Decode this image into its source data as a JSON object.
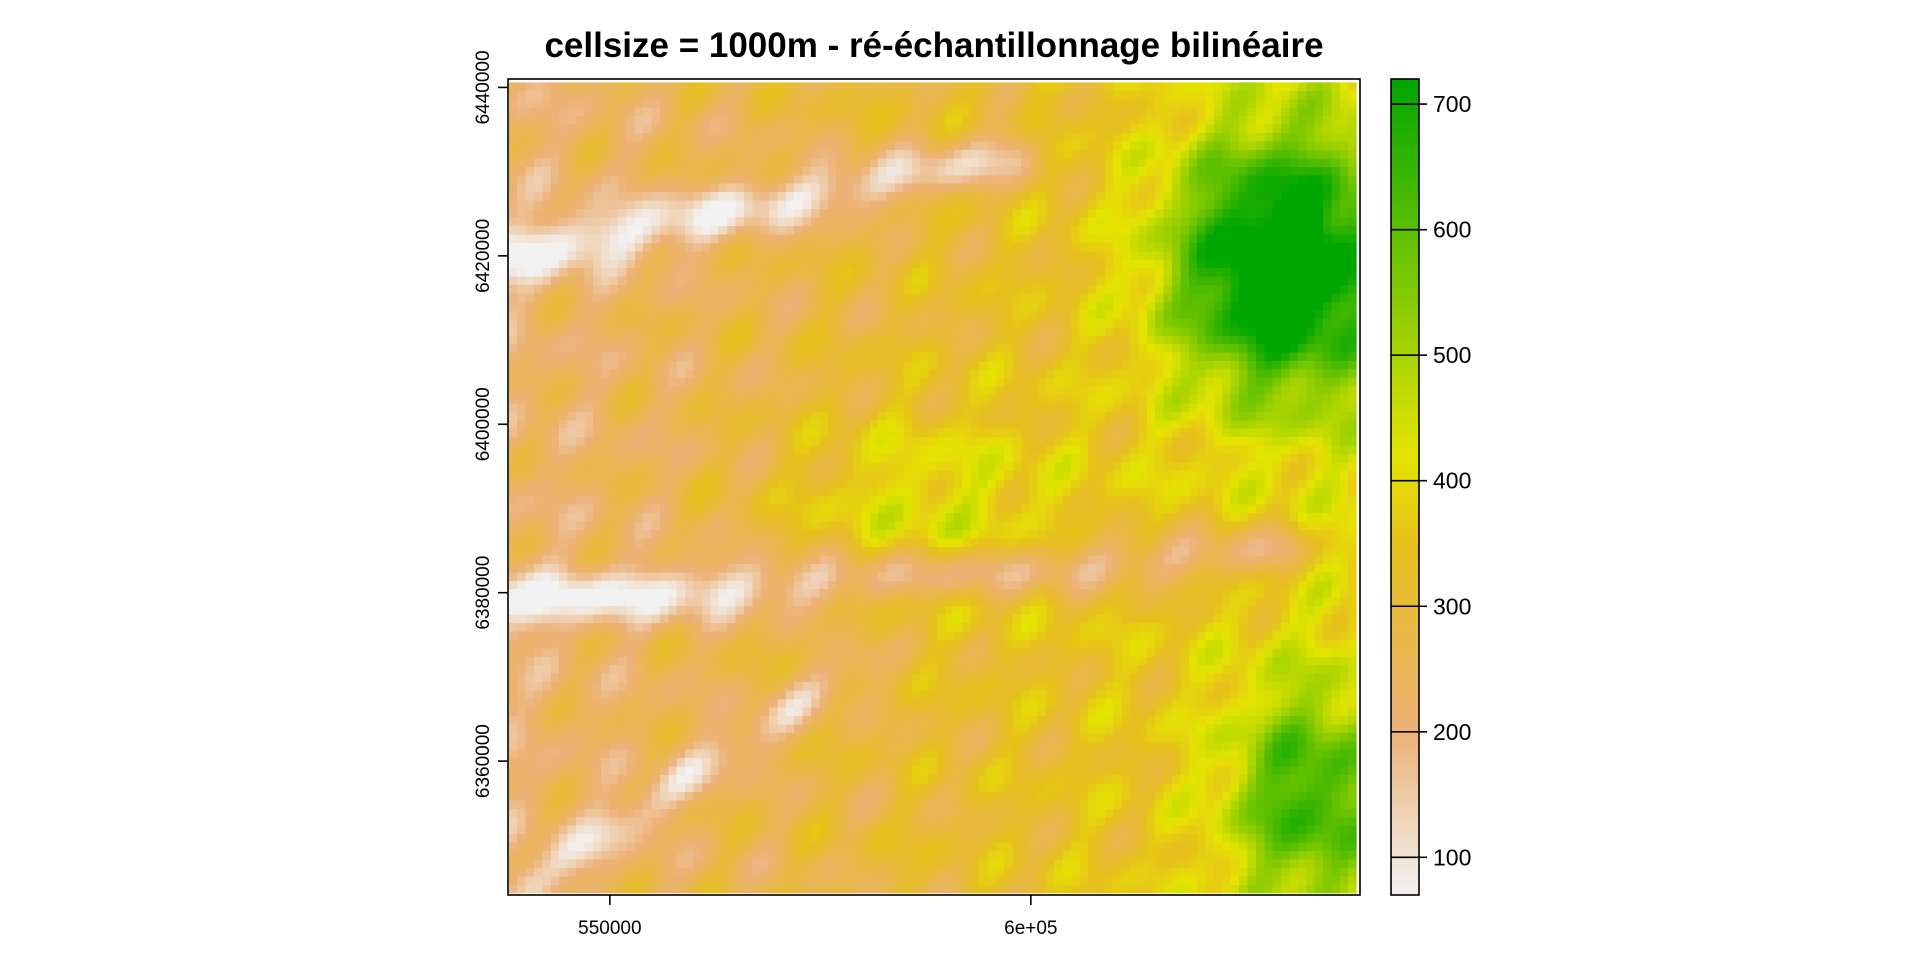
{
  "chart_data": {
    "type": "heatmap",
    "title": "cellsize = 1000m - ré-échantillonnage bilinéaire",
    "xlabel": "",
    "ylabel": "",
    "x_ticks": [
      {
        "value": 550000,
        "label": "550000"
      },
      {
        "value": 600000,
        "label": "6e+05"
      }
    ],
    "y_ticks": [
      {
        "value": 6440000,
        "label": "6440000"
      },
      {
        "value": 6420000,
        "label": "6420000"
      },
      {
        "value": 6400000,
        "label": "6400000"
      },
      {
        "value": 6380000,
        "label": "6380000"
      },
      {
        "value": 6360000,
        "label": "6360000"
      }
    ],
    "xlim": [
      537900,
      639100
    ],
    "ylim": [
      6344100,
      6441000
    ],
    "cellsize": 1000,
    "raster_extent": {
      "xmin": 538000,
      "xmax": 638700,
      "ymin": 6344300,
      "ymax": 6440600
    },
    "legend": {
      "range": [
        70,
        720
      ],
      "ticks": [
        100,
        200,
        300,
        400,
        500,
        600,
        700
      ],
      "placement": "right"
    },
    "colormap": [
      {
        "value": 70,
        "color": "#f2f2f2"
      },
      {
        "value": 200,
        "color": "#ecb176"
      },
      {
        "value": 350,
        "color": "#e6c11b"
      },
      {
        "value": 420,
        "color": "#e5e400"
      },
      {
        "value": 720,
        "color": "#00a600"
      }
    ],
    "elevation_summary": {
      "min": 70,
      "max": 720,
      "valleys": [
        {
          "name": "northern valley",
          "from": [
            538000,
            6420000
          ],
          "to": [
            598000,
            6432000
          ],
          "min": 90
        },
        {
          "name": "southern valley",
          "from": [
            538000,
            6379000
          ],
          "to": [
            630000,
            6385000
          ],
          "min": 90
        },
        {
          "name": "south-western network",
          "from": [
            541000,
            6346000
          ],
          "to": [
            580000,
            6372000
          ],
          "min": 100
        }
      ],
      "highlands": [
        {
          "name": "north-east massif",
          "center": [
            630000,
            6419000
          ],
          "max": 720
        },
        {
          "name": "south-east massif",
          "center": [
            633000,
            6356000
          ],
          "max": 600
        },
        {
          "name": "central plateau",
          "center": [
            587000,
            6390000
          ],
          "max": 420
        }
      ]
    }
  }
}
